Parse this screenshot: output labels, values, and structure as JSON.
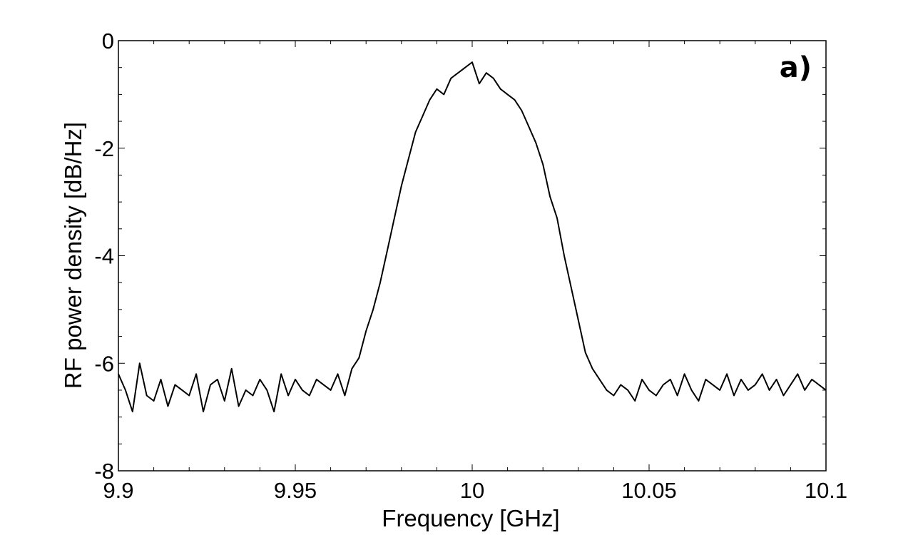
{
  "chart_data": {
    "type": "line",
    "xlabel": "Frequency [GHz]",
    "ylabel": "RF power density [dB/Hz]",
    "panel_label": "a)",
    "xlim": [
      9.9,
      10.1
    ],
    "ylim": [
      -8,
      0
    ],
    "xticks": [
      9.9,
      9.95,
      10,
      10.05,
      10.1
    ],
    "xtick_labels": [
      "9.9",
      "9.95",
      "10",
      "10.05",
      "10.1"
    ],
    "yticks": [
      0,
      -2,
      -4,
      -6,
      -8
    ],
    "ytick_labels": [
      "0",
      "-2",
      "-4",
      "-6",
      "-8"
    ],
    "grid": false,
    "series": [
      {
        "color": "#000000",
        "x": [
          9.9,
          9.902,
          9.904,
          9.906,
          9.908,
          9.91,
          9.912,
          9.914,
          9.916,
          9.918,
          9.92,
          9.922,
          9.924,
          9.926,
          9.928,
          9.93,
          9.932,
          9.934,
          9.936,
          9.938,
          9.94,
          9.942,
          9.944,
          9.946,
          9.948,
          9.95,
          9.952,
          9.954,
          9.956,
          9.958,
          9.96,
          9.962,
          9.964,
          9.966,
          9.968,
          9.97,
          9.972,
          9.974,
          9.976,
          9.978,
          9.98,
          9.982,
          9.984,
          9.986,
          9.988,
          9.99,
          9.992,
          9.994,
          9.996,
          9.998,
          10.0,
          10.002,
          10.004,
          10.006,
          10.008,
          10.01,
          10.012,
          10.014,
          10.016,
          10.018,
          10.02,
          10.022,
          10.024,
          10.026,
          10.028,
          10.03,
          10.032,
          10.034,
          10.036,
          10.038,
          10.04,
          10.042,
          10.044,
          10.046,
          10.048,
          10.05,
          10.052,
          10.054,
          10.056,
          10.058,
          10.06,
          10.062,
          10.064,
          10.066,
          10.068,
          10.07,
          10.072,
          10.074,
          10.076,
          10.078,
          10.08,
          10.082,
          10.084,
          10.086,
          10.088,
          10.09,
          10.092,
          10.094,
          10.096,
          10.098,
          10.1
        ],
        "y": [
          -6.2,
          -6.5,
          -6.9,
          -6.0,
          -6.6,
          -6.7,
          -6.3,
          -6.8,
          -6.4,
          -6.5,
          -6.6,
          -6.2,
          -6.9,
          -6.4,
          -6.3,
          -6.7,
          -6.1,
          -6.8,
          -6.5,
          -6.6,
          -6.3,
          -6.5,
          -6.9,
          -6.2,
          -6.6,
          -6.3,
          -6.5,
          -6.6,
          -6.3,
          -6.4,
          -6.5,
          -6.2,
          -6.6,
          -6.1,
          -5.9,
          -5.4,
          -5.0,
          -4.5,
          -3.9,
          -3.3,
          -2.7,
          -2.2,
          -1.7,
          -1.4,
          -1.1,
          -0.9,
          -1.0,
          -0.7,
          -0.6,
          -0.5,
          -0.4,
          -0.8,
          -0.6,
          -0.7,
          -0.9,
          -1.0,
          -1.1,
          -1.3,
          -1.6,
          -1.9,
          -2.3,
          -2.9,
          -3.3,
          -4.0,
          -4.6,
          -5.2,
          -5.8,
          -6.1,
          -6.3,
          -6.5,
          -6.6,
          -6.4,
          -6.5,
          -6.7,
          -6.3,
          -6.5,
          -6.6,
          -6.4,
          -6.3,
          -6.6,
          -6.2,
          -6.5,
          -6.7,
          -6.3,
          -6.4,
          -6.5,
          -6.2,
          -6.6,
          -6.3,
          -6.5,
          -6.4,
          -6.2,
          -6.5,
          -6.3,
          -6.6,
          -6.4,
          -6.2,
          -6.5,
          -6.3,
          -6.4,
          -6.5
        ]
      }
    ]
  }
}
